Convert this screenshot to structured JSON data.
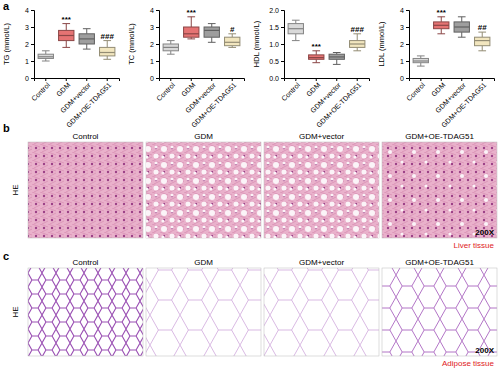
{
  "chart_data": [
    {
      "type": "box",
      "y_label": "TG (mmol/L)",
      "categories": [
        "Control",
        "GDM",
        "GDM+vector",
        "GDM+OE-TDAG51"
      ],
      "colors": [
        "#d9d9d9",
        "#e57373",
        "#9e9e9e",
        "#f2e6bf"
      ],
      "values": [
        {
          "min": 1.0,
          "q1": 1.15,
          "median": 1.25,
          "q3": 1.4,
          "max": 1.6
        },
        {
          "min": 1.8,
          "q1": 2.2,
          "median": 2.5,
          "q3": 2.8,
          "max": 3.2
        },
        {
          "min": 1.7,
          "q1": 2.0,
          "median": 2.3,
          "q3": 2.6,
          "max": 2.9
        },
        {
          "min": 1.1,
          "q1": 1.3,
          "median": 1.5,
          "q3": 1.8,
          "max": 2.2
        }
      ],
      "ylim": [
        0,
        4
      ],
      "yticks": [
        0,
        1,
        2,
        3,
        4
      ],
      "annotations": [
        {
          "category": "GDM",
          "text": "***"
        },
        {
          "category": "GDM+OE-TDAG51",
          "text": "###"
        }
      ]
    },
    {
      "type": "box",
      "y_label": "TC (mmol/L)",
      "categories": [
        "Control",
        "GDM",
        "GDM+vector",
        "GDM+OE-TDAG51"
      ],
      "colors": [
        "#d9d9d9",
        "#e57373",
        "#9e9e9e",
        "#f2e6bf"
      ],
      "values": [
        {
          "min": 1.4,
          "q1": 1.6,
          "median": 1.8,
          "q3": 2.0,
          "max": 2.2
        },
        {
          "min": 2.3,
          "q1": 2.4,
          "median": 2.6,
          "q3": 3.0,
          "max": 3.6
        },
        {
          "min": 2.1,
          "q1": 2.4,
          "median": 2.8,
          "q3": 3.0,
          "max": 3.2
        },
        {
          "min": 1.8,
          "q1": 1.9,
          "median": 2.1,
          "q3": 2.4,
          "max": 2.6
        }
      ],
      "ylim": [
        0,
        4
      ],
      "yticks": [
        0,
        1,
        2,
        3,
        4
      ],
      "annotations": [
        {
          "category": "GDM",
          "text": "***"
        },
        {
          "category": "GDM+OE-TDAG51",
          "text": "#"
        }
      ]
    },
    {
      "type": "box",
      "y_label": "HDL (mmol/L)",
      "categories": [
        "Control",
        "GDM",
        "GDM+vector",
        "GDM+OE-TDAG51"
      ],
      "colors": [
        "#d9d9d9",
        "#e57373",
        "#9e9e9e",
        "#f2e6bf"
      ],
      "values": [
        {
          "min": 1.1,
          "q1": 1.3,
          "median": 1.45,
          "q3": 1.6,
          "max": 1.7
        },
        {
          "min": 0.45,
          "q1": 0.55,
          "median": 0.6,
          "q3": 0.68,
          "max": 0.8
        },
        {
          "min": 0.4,
          "q1": 0.55,
          "median": 0.62,
          "q3": 0.7,
          "max": 0.75
        },
        {
          "min": 0.8,
          "q1": 0.9,
          "median": 1.0,
          "q3": 1.1,
          "max": 1.3
        }
      ],
      "ylim": [
        0,
        2
      ],
      "yticks": [
        {
          "value": 0,
          "label": "0.0"
        },
        {
          "value": 0.5,
          "label": "0.5"
        },
        {
          "value": 1,
          "label": "1.0"
        },
        {
          "value": 1.5,
          "label": "1.5"
        },
        {
          "value": 2,
          "label": "2.0"
        }
      ],
      "annotations": [
        {
          "category": "GDM",
          "text": "***"
        },
        {
          "category": "GDM+OE-TDAG51",
          "text": "###"
        }
      ]
    },
    {
      "type": "box",
      "y_label": "LDL (mmol/L)",
      "categories": [
        "Control",
        "GDM",
        "GDM+vector",
        "GDM+OE-TDAG51"
      ],
      "colors": [
        "#d9d9d9",
        "#e57373",
        "#9e9e9e",
        "#f2e6bf"
      ],
      "values": [
        {
          "min": 0.7,
          "q1": 0.9,
          "median": 1.0,
          "q3": 1.15,
          "max": 1.3
        },
        {
          "min": 2.6,
          "q1": 2.9,
          "median": 3.1,
          "q3": 3.3,
          "max": 3.6
        },
        {
          "min": 2.4,
          "q1": 2.7,
          "median": 3.0,
          "q3": 3.3,
          "max": 3.6
        },
        {
          "min": 1.6,
          "q1": 1.9,
          "median": 2.2,
          "q3": 2.4,
          "max": 2.7
        }
      ],
      "ylim": [
        0,
        4
      ],
      "yticks": [
        0,
        1,
        2,
        3,
        4
      ],
      "annotations": [
        {
          "category": "GDM",
          "text": "***"
        },
        {
          "category": "GDM+OE-TDAG51",
          "text": "##"
        }
      ]
    }
  ],
  "panel_labels": [
    "a",
    "b",
    "c"
  ],
  "histology_panels": [
    {
      "row_label": "HE",
      "columns": [
        "Control",
        "GDM",
        "GDM+vector",
        "GDM+OE-TDAG51"
      ],
      "magnification": "200X",
      "tissue": "Liver tissue"
    },
    {
      "row_label": "HE",
      "columns": [
        "Control",
        "GDM",
        "GDM+vector",
        "GDM+OE-TDAG51"
      ],
      "magnification": "200X",
      "tissue": "Adipose tissue"
    }
  ]
}
